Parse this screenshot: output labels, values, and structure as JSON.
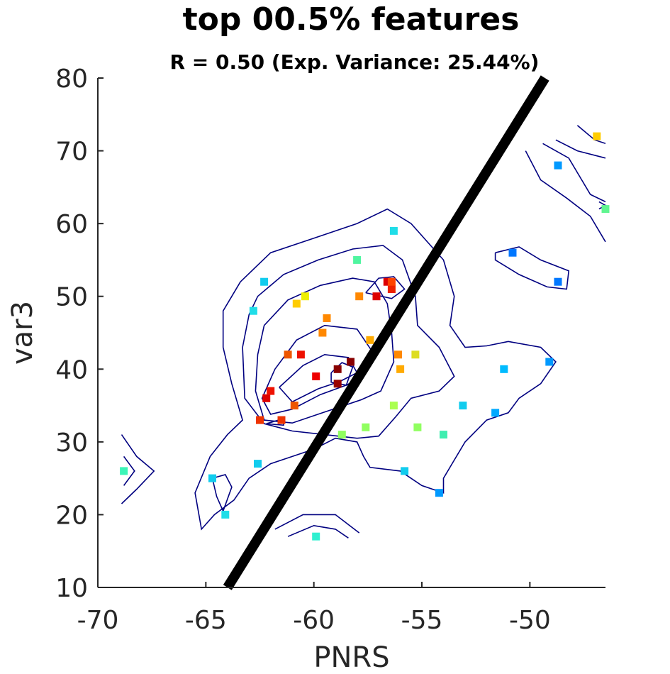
{
  "chart_data": {
    "type": "scatter",
    "title": "top 00.5% features",
    "subtitle": "R = 0.50 (Exp. Variance: 25.44%)",
    "xlabel": "PNRS",
    "ylabel": "var3",
    "xlim": [
      -70,
      -46.5
    ],
    "ylim": [
      10,
      80
    ],
    "xticks": [
      -70,
      -65,
      -60,
      -55,
      -50
    ],
    "yticks": [
      10,
      20,
      30,
      40,
      50,
      60,
      70,
      80
    ],
    "xtick_labels": [
      "-70",
      "-65",
      "-60",
      "-55",
      "-50"
    ],
    "ytick_labels": [
      "10",
      "20",
      "30",
      "40",
      "50",
      "60",
      "70",
      "80"
    ],
    "grid": false,
    "legend": false,
    "colormap": "jet",
    "fit_line": {
      "x": [
        -64,
        -49.3
      ],
      "y": [
        10,
        80
      ],
      "color": "#000000"
    },
    "points": [
      {
        "x": -68.8,
        "y": 26,
        "color": "#3cf5b8"
      },
      {
        "x": -64.7,
        "y": 25,
        "color": "#11ccee"
      },
      {
        "x": -64.1,
        "y": 20,
        "color": "#20dde8"
      },
      {
        "x": -62.8,
        "y": 48,
        "color": "#20dde8"
      },
      {
        "x": -62.6,
        "y": 27,
        "color": "#11ccee"
      },
      {
        "x": -62.3,
        "y": 52,
        "color": "#11ccee"
      },
      {
        "x": -62.5,
        "y": 33,
        "color": "#ee3300"
      },
      {
        "x": -62.2,
        "y": 36,
        "color": "#dd0000"
      },
      {
        "x": -62.0,
        "y": 37,
        "color": "#ee1100"
      },
      {
        "x": -61.5,
        "y": 33,
        "color": "#ee3300"
      },
      {
        "x": -61.2,
        "y": 42,
        "color": "#ee5500"
      },
      {
        "x": -60.9,
        "y": 35,
        "color": "#ee5500"
      },
      {
        "x": -60.8,
        "y": 49,
        "color": "#ffcc00"
      },
      {
        "x": -60.6,
        "y": 42,
        "color": "#ee1100"
      },
      {
        "x": -60.4,
        "y": 50,
        "color": "#eeee00"
      },
      {
        "x": -59.9,
        "y": 39,
        "color": "#ee0000"
      },
      {
        "x": -59.9,
        "y": 17,
        "color": "#30f0d0"
      },
      {
        "x": -59.6,
        "y": 45,
        "color": "#ff8800"
      },
      {
        "x": -59.4,
        "y": 47,
        "color": "#ff8800"
      },
      {
        "x": -58.9,
        "y": 40,
        "color": "#880000"
      },
      {
        "x": -58.9,
        "y": 38,
        "color": "#990000"
      },
      {
        "x": -58.7,
        "y": 31,
        "color": "#90ff60"
      },
      {
        "x": -58.3,
        "y": 41,
        "color": "#880000"
      },
      {
        "x": -58.0,
        "y": 55,
        "color": "#50f5a0"
      },
      {
        "x": -57.9,
        "y": 50,
        "color": "#ff8800"
      },
      {
        "x": -57.6,
        "y": 32,
        "color": "#90ff60"
      },
      {
        "x": -57.4,
        "y": 44,
        "color": "#ffaa00"
      },
      {
        "x": -57.1,
        "y": 50,
        "color": "#dd0000"
      },
      {
        "x": -56.6,
        "y": 52,
        "color": "#dd0000"
      },
      {
        "x": -56.4,
        "y": 51,
        "color": "#ee2200"
      },
      {
        "x": -56.4,
        "y": 52,
        "color": "#ff4400"
      },
      {
        "x": -56.3,
        "y": 59,
        "color": "#20dde8"
      },
      {
        "x": -56.3,
        "y": 35,
        "color": "#aaff50"
      },
      {
        "x": -56.1,
        "y": 42,
        "color": "#ff8800"
      },
      {
        "x": -56.0,
        "y": 40,
        "color": "#ffaa00"
      },
      {
        "x": -55.8,
        "y": 26,
        "color": "#11ccee"
      },
      {
        "x": -55.3,
        "y": 42,
        "color": "#dddd20"
      },
      {
        "x": -55.2,
        "y": 32,
        "color": "#90ff60"
      },
      {
        "x": -54.2,
        "y": 23,
        "color": "#0099ff"
      },
      {
        "x": -54.0,
        "y": 31,
        "color": "#40eeb0"
      },
      {
        "x": -53.1,
        "y": 35,
        "color": "#11ccee"
      },
      {
        "x": -51.6,
        "y": 34,
        "color": "#00aaff"
      },
      {
        "x": -51.2,
        "y": 40,
        "color": "#00bbff"
      },
      {
        "x": -50.8,
        "y": 56,
        "color": "#0077ff"
      },
      {
        "x": -49.1,
        "y": 41,
        "color": "#0099ff"
      },
      {
        "x": -48.7,
        "y": 52,
        "color": "#0077ff"
      },
      {
        "x": -48.7,
        "y": 68,
        "color": "#0099ff"
      },
      {
        "x": -46.9,
        "y": 72,
        "color": "#ffcc00"
      },
      {
        "x": -46.5,
        "y": 62,
        "color": "#60f590"
      }
    ],
    "contours": [
      [
        [
          -63.4,
          52
        ],
        [
          -62,
          56
        ],
        [
          -60,
          58
        ],
        [
          -58,
          60
        ],
        [
          -56.6,
          62
        ],
        [
          -55.5,
          60
        ],
        [
          -54,
          55
        ],
        [
          -53.5,
          50
        ],
        [
          -53.7,
          46
        ],
        [
          -53,
          43
        ],
        [
          -52,
          43.2
        ],
        [
          -51,
          43.8
        ],
        [
          -49.5,
          43
        ],
        [
          -48.8,
          41
        ],
        [
          -49.5,
          38
        ],
        [
          -50.5,
          36
        ],
        [
          -51,
          34
        ],
        [
          -52,
          33
        ],
        [
          -53,
          30
        ],
        [
          -53.5,
          27.5
        ],
        [
          -54,
          25
        ],
        [
          -54,
          23
        ],
        [
          -55,
          24
        ],
        [
          -56,
          26
        ],
        [
          -57.4,
          26.5
        ],
        [
          -57.7,
          28
        ],
        [
          -58,
          30
        ],
        [
          -59,
          30.5
        ],
        [
          -60,
          29
        ],
        [
          -61,
          28
        ],
        [
          -62,
          27
        ],
        [
          -63,
          25
        ],
        [
          -63.7,
          22
        ],
        [
          -64.6,
          20
        ],
        [
          -65.2,
          18
        ],
        [
          -65.5,
          23
        ],
        [
          -64.8,
          28
        ],
        [
          -64,
          31
        ],
        [
          -63.3,
          33
        ],
        [
          -63.8,
          38
        ],
        [
          -64.2,
          43
        ],
        [
          -64.2,
          48
        ],
        [
          -63.4,
          52
        ]
      ],
      [
        [
          -62.6,
          50
        ],
        [
          -61.4,
          53
        ],
        [
          -59.8,
          55
        ],
        [
          -58.2,
          56.5
        ],
        [
          -56.8,
          57
        ],
        [
          -55.9,
          55
        ],
        [
          -55.3,
          50
        ],
        [
          -55.2,
          46
        ],
        [
          -54.2,
          43
        ],
        [
          -53.5,
          39
        ],
        [
          -54.2,
          37
        ],
        [
          -55.5,
          36
        ],
        [
          -56.2,
          33.5
        ],
        [
          -57,
          30.8
        ],
        [
          -58,
          30.5
        ],
        [
          -59.5,
          31
        ],
        [
          -61,
          31.5
        ],
        [
          -62.3,
          32.5
        ],
        [
          -63.2,
          36
        ],
        [
          -63.3,
          43
        ],
        [
          -63,
          47.5
        ],
        [
          -62.6,
          50
        ]
      ],
      [
        [
          -62.3,
          46
        ],
        [
          -61.2,
          49.5
        ],
        [
          -59.7,
          51.5
        ],
        [
          -58.2,
          52.5
        ],
        [
          -57.2,
          52
        ],
        [
          -56.6,
          49
        ],
        [
          -56.4,
          45
        ],
        [
          -56.3,
          41
        ],
        [
          -56.9,
          37
        ],
        [
          -57.8,
          35.8
        ],
        [
          -59.6,
          34
        ],
        [
          -61,
          32.6
        ],
        [
          -62.3,
          33
        ],
        [
          -62.7,
          37
        ],
        [
          -62.6,
          42
        ],
        [
          -62.3,
          46
        ]
      ],
      [
        [
          -61.8,
          40
        ],
        [
          -60.8,
          44
        ],
        [
          -59.5,
          46
        ],
        [
          -58,
          45.5
        ],
        [
          -57.2,
          42
        ],
        [
          -57.7,
          39
        ],
        [
          -58.5,
          37.8
        ],
        [
          -59.7,
          36.5
        ],
        [
          -61,
          34.5
        ],
        [
          -62,
          33.8
        ],
        [
          -62.4,
          36
        ],
        [
          -61.8,
          40
        ]
      ],
      [
        [
          -61.6,
          37.5
        ],
        [
          -60.5,
          40.5
        ],
        [
          -59.5,
          42
        ],
        [
          -58.4,
          41.6
        ],
        [
          -58,
          39.5
        ],
        [
          -58.8,
          38.3
        ],
        [
          -59.8,
          37.3
        ],
        [
          -61,
          35.5
        ],
        [
          -61.6,
          37.5
        ]
      ],
      [
        [
          -59.2,
          39.5
        ],
        [
          -58.7,
          40.9
        ],
        [
          -58.2,
          40.3
        ],
        [
          -58.5,
          37.8
        ],
        [
          -59.2,
          38.2
        ],
        [
          -59.2,
          39.5
        ]
      ],
      [
        [
          -57.6,
          50.5
        ],
        [
          -57,
          52.5
        ],
        [
          -56.3,
          52.7
        ],
        [
          -55.8,
          51
        ],
        [
          -56.4,
          49.7
        ],
        [
          -57.6,
          50.5
        ]
      ],
      [
        [
          -62.2,
          32.5
        ],
        [
          -61.4,
          32.3
        ],
        [
          -61.4,
          33.2
        ],
        [
          -62.2,
          32.5
        ]
      ],
      [
        [
          -51.6,
          56
        ],
        [
          -50.5,
          56.8
        ],
        [
          -49.5,
          55
        ],
        [
          -48.2,
          53.5
        ],
        [
          -48.3,
          51
        ],
        [
          -49.2,
          51.3
        ],
        [
          -50.5,
          53
        ],
        [
          -51.6,
          55
        ],
        [
          -51.6,
          56
        ]
      ],
      [
        [
          -68.9,
          31
        ],
        [
          -68.2,
          28
        ],
        [
          -67.4,
          26
        ],
        [
          -68.2,
          23.5
        ],
        [
          -68.9,
          21.5
        ]
      ],
      [
        [
          -68.8,
          28
        ],
        [
          -68.3,
          26
        ],
        [
          -68.8,
          24
        ]
      ],
      [
        [
          -64.7,
          25
        ],
        [
          -64.1,
          25.5
        ],
        [
          -63.8,
          23.8
        ],
        [
          -64.2,
          20.5
        ],
        [
          -64.5,
          22.5
        ],
        [
          -64.7,
          25
        ]
      ],
      [
        [
          -61.8,
          18
        ],
        [
          -60.5,
          20
        ],
        [
          -59,
          20
        ],
        [
          -57.9,
          17.5
        ]
      ],
      [
        [
          -61.2,
          17
        ],
        [
          -60,
          18.5
        ],
        [
          -59,
          18
        ],
        [
          -58.4,
          16.8
        ]
      ],
      [
        [
          -50.2,
          70
        ],
        [
          -49.5,
          66
        ],
        [
          -48.3,
          63.5
        ],
        [
          -47.2,
          61
        ],
        [
          -46.5,
          57.5
        ]
      ],
      [
        [
          -49.4,
          71
        ],
        [
          -48.2,
          69
        ],
        [
          -47.6,
          66
        ],
        [
          -47.2,
          64
        ],
        [
          -46.5,
          63
        ]
      ],
      [
        [
          -48.8,
          71.5
        ],
        [
          -47.8,
          70
        ],
        [
          -46.5,
          69
        ]
      ],
      [
        [
          -47.8,
          73.5
        ],
        [
          -47,
          71.5
        ],
        [
          -46.5,
          71
        ]
      ],
      [
        [
          -46.8,
          63
        ],
        [
          -46.5,
          62.5
        ],
        [
          -46.8,
          62
        ]
      ]
    ]
  }
}
